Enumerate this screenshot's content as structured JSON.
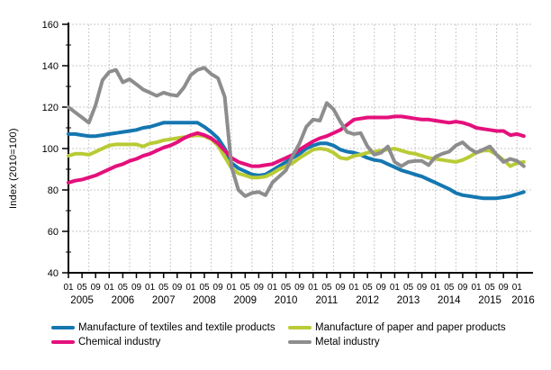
{
  "chart_data": {
    "type": "line",
    "title": "",
    "xlabel": "",
    "ylabel": "Index (2010=100)",
    "ylim": [
      40,
      160
    ],
    "y_ticks": [
      40,
      60,
      80,
      100,
      120,
      140,
      160
    ],
    "grid": true,
    "x_tick_label_cycle": [
      "01",
      "05",
      "09"
    ],
    "x_tick_every_months": 4,
    "x_gridline_every_months": 6,
    "years": [
      2005,
      2006,
      2007,
      2008,
      2009,
      2010,
      2011,
      2012,
      2013,
      2014,
      2015,
      2016
    ],
    "x_start": "2005-01",
    "x_step_months": 2,
    "legend_position": "bottom",
    "colors": {
      "grid": "#c9c9c9",
      "axis": "#000000"
    },
    "series": [
      {
        "id": "textiles",
        "name": "Manufacture of textiles and textile products",
        "color": "#1577B0",
        "values": [
          107,
          107,
          106.5,
          106,
          106,
          106.5,
          107,
          107.5,
          108,
          108.5,
          109,
          110,
          110.5,
          111.5,
          112.5,
          112.5,
          112.5,
          112.5,
          112.5,
          112.5,
          110.5,
          108,
          105,
          100,
          93,
          90.5,
          89,
          87.5,
          87,
          87.5,
          89.5,
          91.5,
          93.5,
          95.5,
          97.5,
          100,
          101.5,
          102.5,
          102.5,
          101.5,
          99.5,
          98.5,
          98,
          97,
          95.5,
          94.5,
          94,
          92.5,
          91,
          89.5,
          88.5,
          87.5,
          86.5,
          85,
          83.5,
          82,
          80.5,
          78.5,
          77.5,
          77,
          76.5,
          76,
          76,
          76,
          76.5,
          77,
          78,
          79
        ]
      },
      {
        "id": "paper",
        "name": "Manufacture of paper and paper products",
        "color": "#B9CB35",
        "values": [
          96.5,
          97.5,
          97.5,
          97,
          98.5,
          100,
          101.5,
          102,
          102,
          102,
          102,
          101,
          102.5,
          103,
          104,
          104.5,
          105,
          105.5,
          106,
          106.5,
          106,
          104.5,
          101.5,
          96,
          90.5,
          88,
          87,
          86,
          86,
          86.5,
          88,
          90,
          91.5,
          93,
          95.5,
          97.5,
          99.5,
          100,
          99.5,
          98,
          95.5,
          95,
          96.5,
          97,
          98,
          98.5,
          99,
          99.5,
          100,
          99,
          98,
          97.5,
          96.5,
          95.5,
          95,
          94.5,
          94,
          93.5,
          94.5,
          96,
          98,
          99,
          99,
          97,
          94.5,
          91.5,
          93,
          93.5
        ]
      },
      {
        "id": "chemical",
        "name": "Chemical industry",
        "color": "#E4107C",
        "values": [
          83.5,
          84.5,
          85,
          86,
          87,
          88.5,
          90,
          91.5,
          92.5,
          94,
          95,
          96.5,
          97.5,
          99,
          100.5,
          101.5,
          103,
          105,
          106.5,
          107.5,
          106.5,
          105,
          102.5,
          99,
          95.5,
          93.5,
          92.5,
          91.5,
          91.5,
          92,
          92.5,
          94,
          95.5,
          97,
          99.5,
          101.5,
          103.5,
          105,
          106,
          107.5,
          109,
          111.5,
          114,
          114.5,
          115,
          115,
          115,
          115,
          115.5,
          115.5,
          115,
          114.5,
          114,
          114,
          113.5,
          113,
          112.5,
          113,
          112.5,
          111.5,
          110,
          109.5,
          109,
          108.5,
          108.5,
          106.5,
          107,
          106
        ]
      },
      {
        "id": "metal",
        "name": "Metal industry",
        "color": "#8D8D8D",
        "values": [
          120,
          117.5,
          115,
          112.5,
          121,
          133,
          137,
          138,
          132,
          133.5,
          131,
          128.5,
          127,
          125.5,
          127,
          126,
          125.5,
          129.5,
          135.5,
          138,
          139,
          136,
          134,
          125,
          91,
          80,
          77,
          78.5,
          79,
          77.5,
          83.5,
          86.5,
          89.5,
          96.5,
          102.5,
          110.5,
          114,
          113.5,
          122,
          119,
          113,
          108,
          107,
          107.5,
          101,
          97,
          98,
          101,
          93.5,
          91.5,
          93.5,
          94,
          94,
          92,
          96,
          97.5,
          98.5,
          101.5,
          103,
          100,
          98,
          99.5,
          101,
          97,
          93.5,
          95,
          94,
          91.5
        ]
      }
    ]
  }
}
